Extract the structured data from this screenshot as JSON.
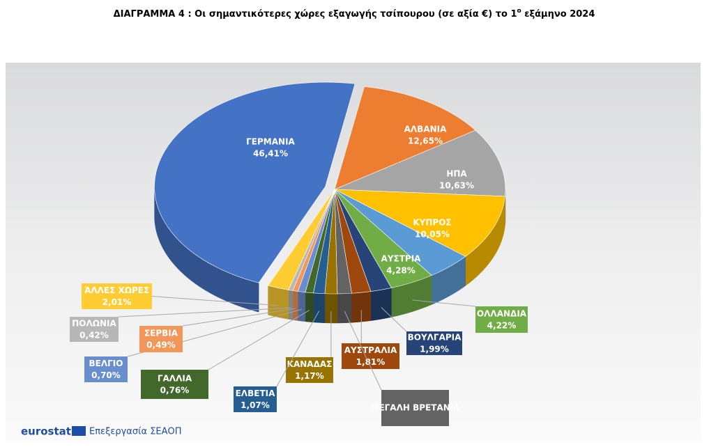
{
  "chart_data": {
    "type": "pie",
    "title": {
      "main": "ΔΙΑΓΡΑΜΜΑ 4 : Οι σημαντικότερες χώρες εξαγωγής τσίπουρου (σε αξία €) το 1",
      "sup": "ο",
      "rest": " εξάμηνο 2024"
    },
    "categories": [
      "ΓΕΡΜΑΝΙΑ",
      "ΑΛΒΑΝΙΑ",
      "ΗΠΑ",
      "ΚΥΠΡΟΣ",
      "ΑΥΣΤΡΙΑ",
      "ΟΛΛΑΝΔΙΑ",
      "ΒΟΥΛΓΑΡΙΑ",
      "ΑΥΣΤΡΑΛΙΑ",
      "ΜΕΓΑΛΗ ΒΡΕΤΑΝΙΑ",
      "ΚΑΝΑΔΑΣ",
      "ΕΛΒΕΤΙΑ",
      "ΓΑΛΛΙΑ",
      "ΒΕΛΓΙΟ",
      "ΣΕΡΒΙΑ",
      "ΠΟΛΩΝΙΑ",
      "ΆΛΛΕΣ ΧΩΡΕΣ"
    ],
    "values": [
      46.41,
      12.65,
      10.63,
      10.05,
      4.28,
      4.22,
      1.99,
      1.81,
      1.34,
      1.17,
      1.07,
      0.76,
      0.7,
      0.49,
      0.42,
      2.01
    ],
    "value_labels": [
      "46,41%",
      "12,65%",
      "10,63%",
      "10,05%",
      "4,28%",
      "4,22%",
      "1,99%",
      "1,81%",
      null,
      "1,17%",
      "1,07%",
      "0,76%",
      "0,70%",
      "0,49%",
      "0,42%",
      "2,01%"
    ],
    "colors": [
      "#4472c4",
      "#ed7d31",
      "#a5a5a5",
      "#ffc000",
      "#5b9bd5",
      "#70ad47",
      "#264478",
      "#9e480e",
      "#636363",
      "#997300",
      "#255e91",
      "#43682b",
      "#698ed0",
      "#f1975a",
      "#b7b7b7",
      "#ffcd33"
    ],
    "source": {
      "brand": "eurostat",
      "note": "Επεξεργασία ΣΕΑΟΠ"
    }
  }
}
